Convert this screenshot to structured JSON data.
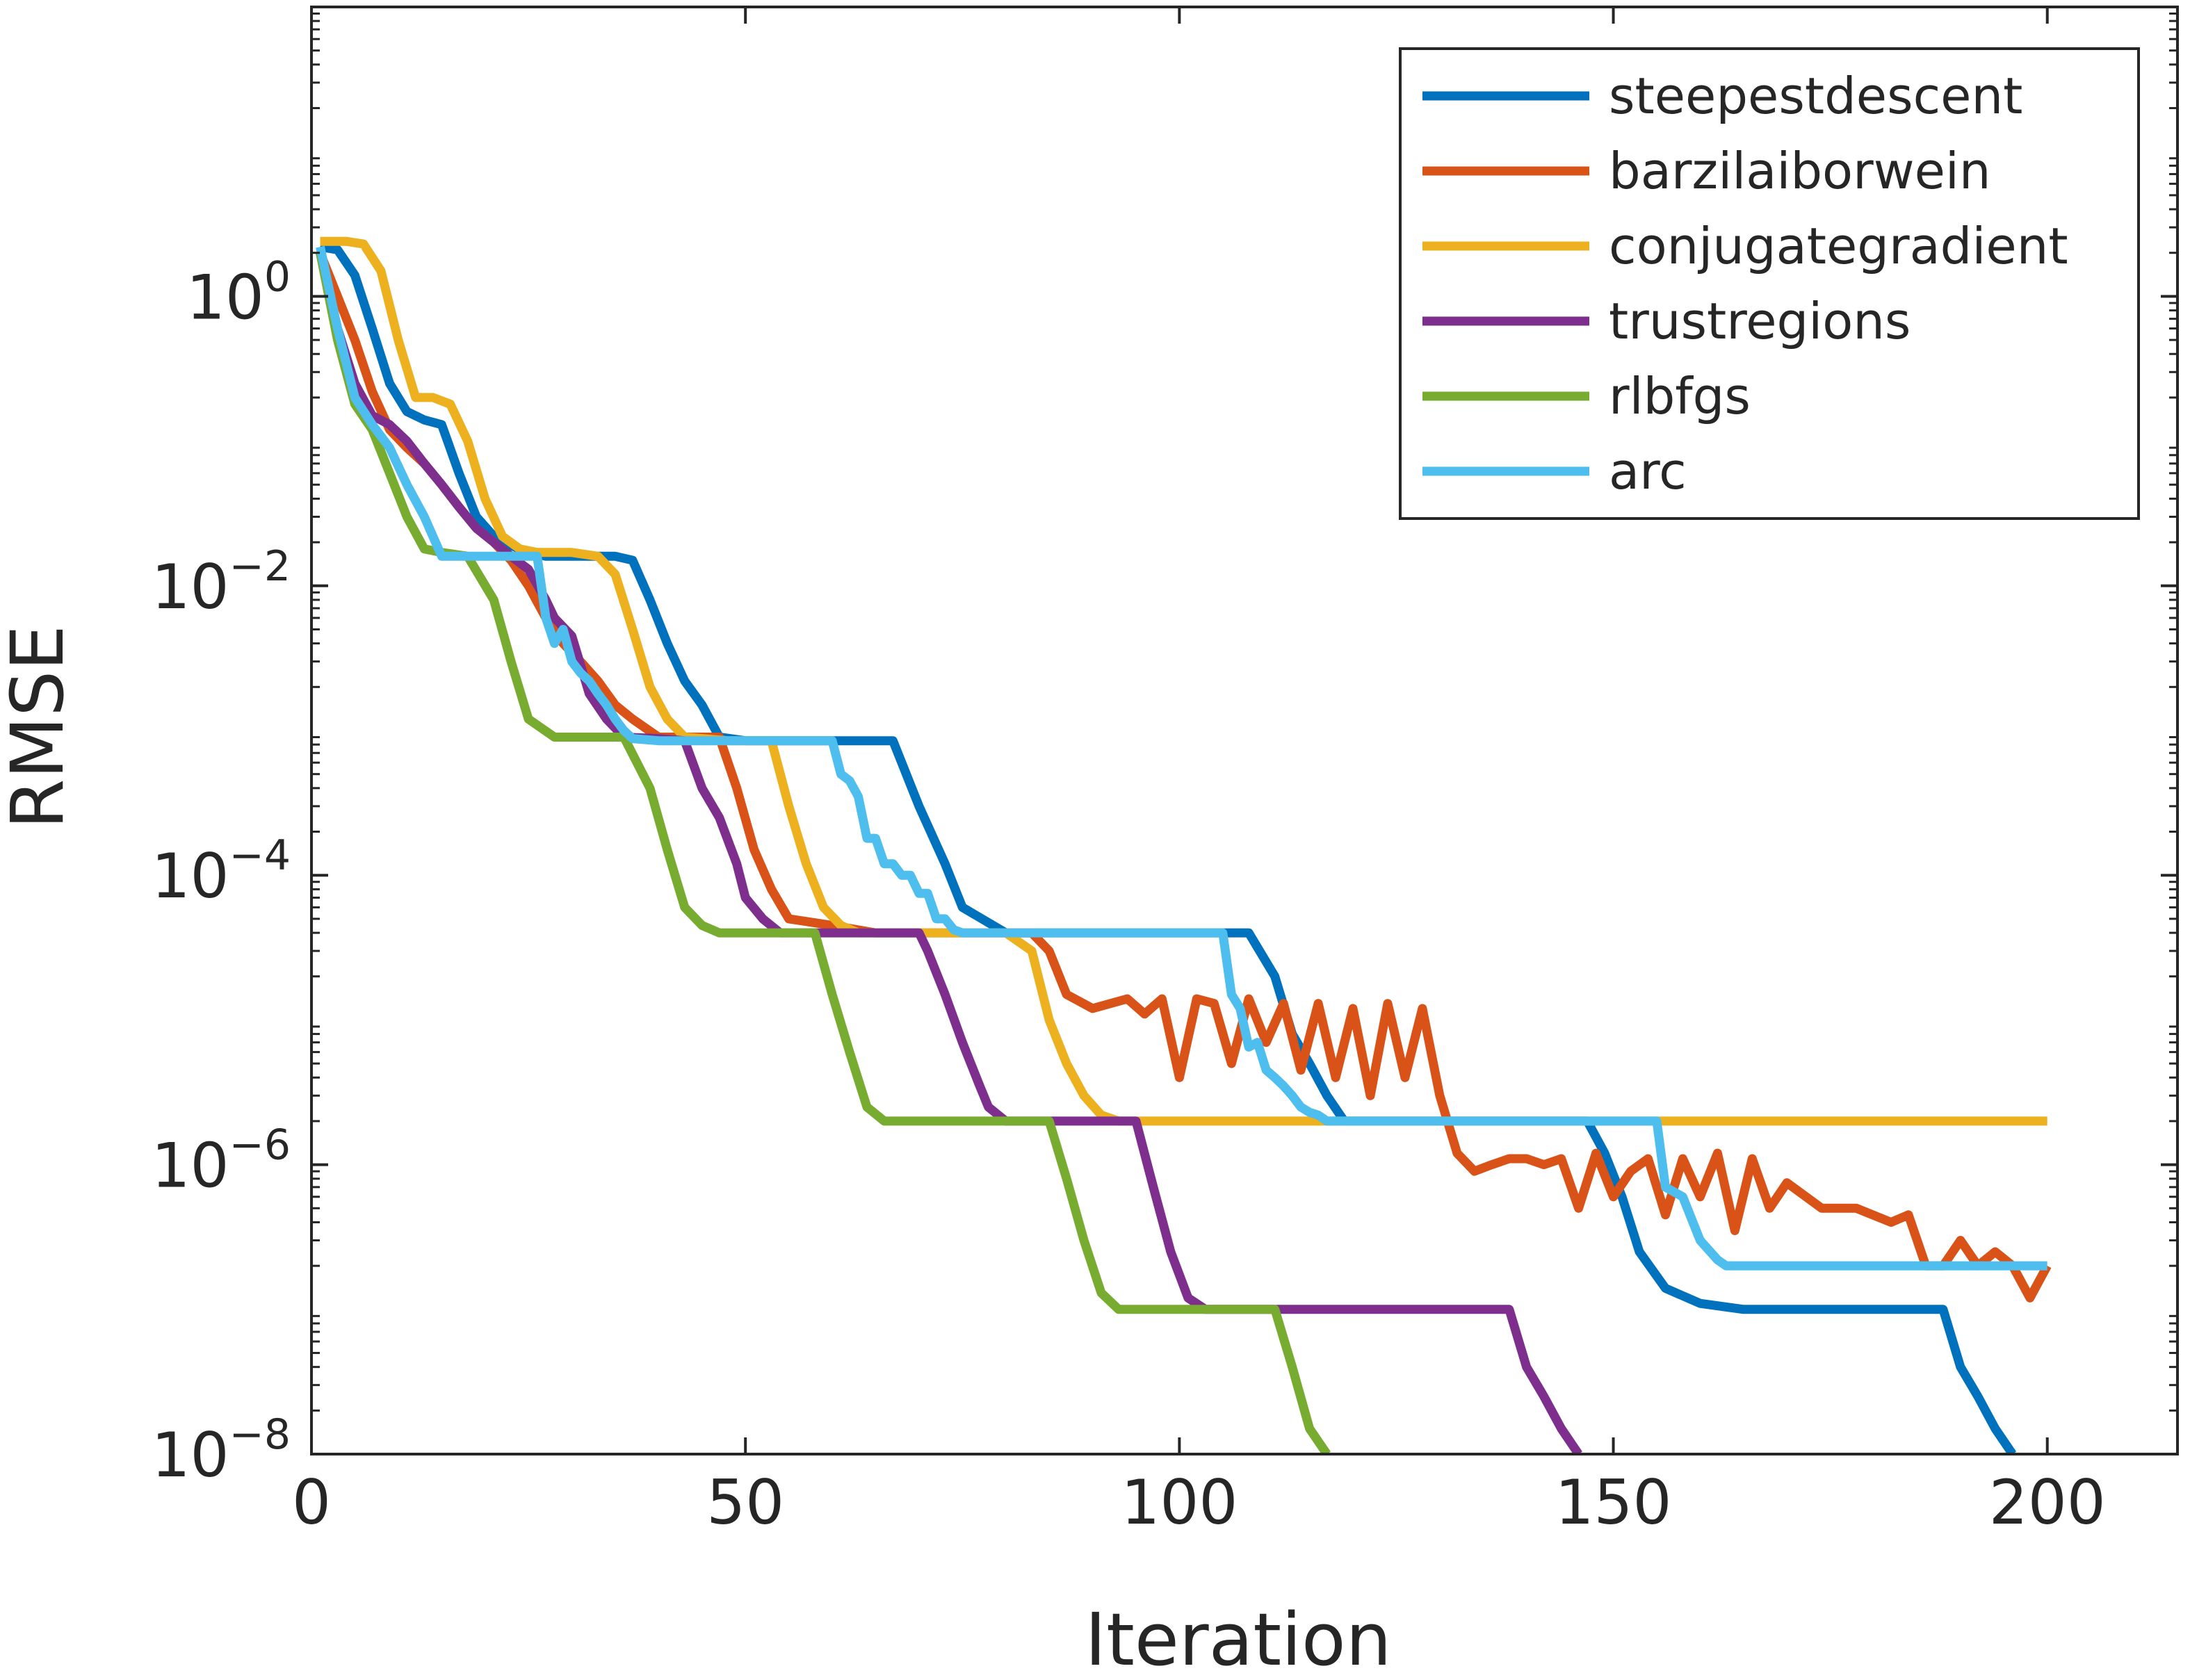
{
  "chart_data": {
    "type": "line",
    "title": "",
    "xlabel": "Iteration",
    "ylabel": "RMSE",
    "xscale": "linear",
    "yscale": "log",
    "xlim": [
      0,
      215
    ],
    "ylim": [
      1e-08,
      100
    ],
    "xticks": [
      0,
      50,
      100,
      150,
      200
    ],
    "xtick_labels": [
      "0",
      "50",
      "100",
      "150",
      "200"
    ],
    "yticks": [
      1,
      0.01,
      0.0001,
      1e-06,
      1e-08
    ],
    "ytick_labels": [
      {
        "base": "10",
        "exp": "0"
      },
      {
        "base": "10",
        "exp": "−2"
      },
      {
        "base": "10",
        "exp": "−4"
      },
      {
        "base": "10",
        "exp": "−6"
      },
      {
        "base": "10",
        "exp": "−8"
      }
    ],
    "grid": false,
    "legend_location": "top-right",
    "series": [
      {
        "name": "steepestdescent",
        "color": "#0072BD",
        "x": [
          1,
          3,
          5,
          7,
          9,
          11,
          13,
          15,
          17,
          19,
          21,
          23,
          25,
          27,
          30,
          33,
          35,
          37,
          39,
          41,
          43,
          45,
          47,
          50,
          55,
          60,
          67,
          70,
          73,
          75,
          80,
          90,
          100,
          108,
          111,
          113,
          115,
          117,
          119,
          122,
          130,
          140,
          147,
          149,
          151,
          153,
          156,
          160,
          165,
          170,
          180,
          188,
          190,
          192,
          194,
          196
        ],
        "y": [
          2.2,
          2.1,
          1.4,
          0.6,
          0.25,
          0.16,
          0.14,
          0.13,
          0.06,
          0.03,
          0.022,
          0.019,
          0.017,
          0.016,
          0.016,
          0.016,
          0.016,
          0.015,
          0.008,
          0.004,
          0.0022,
          0.0015,
          0.0009,
          0.00085,
          0.00085,
          0.00085,
          0.00085,
          0.0003,
          0.00012,
          6e-05,
          4e-05,
          4e-05,
          4e-05,
          4e-05,
          2e-05,
          8e-06,
          5e-06,
          3e-06,
          2e-06,
          2e-06,
          2e-06,
          2e-06,
          2e-06,
          1.2e-06,
          6e-07,
          2.5e-07,
          1.4e-07,
          1.1e-07,
          1e-07,
          1e-07,
          1e-07,
          1e-07,
          4e-08,
          2.5e-08,
          1.5e-08,
          1e-08
        ]
      },
      {
        "name": "barzilaiborwein",
        "color": "#D95319",
        "x": [
          1,
          3,
          5,
          7,
          9,
          11,
          13,
          15,
          17,
          19,
          21,
          23,
          25,
          27,
          29,
          31,
          33,
          35,
          37,
          40,
          43,
          45,
          47,
          49,
          51,
          53,
          55,
          60,
          65,
          70,
          75,
          80,
          83,
          85,
          87,
          90,
          94,
          96,
          98,
          100,
          102,
          104,
          106,
          108,
          110,
          112,
          114,
          116,
          118,
          120,
          122,
          124,
          126,
          128,
          130,
          132,
          134,
          136,
          138,
          140,
          142,
          144,
          146,
          148,
          150,
          152,
          154,
          156,
          158,
          160,
          162,
          164,
          166,
          168,
          170,
          174,
          178,
          182,
          184,
          186,
          188,
          190,
          192,
          194,
          196,
          198,
          200
        ],
        "y": [
          2.0,
          1.0,
          0.5,
          0.22,
          0.12,
          0.09,
          0.07,
          0.05,
          0.035,
          0.025,
          0.02,
          0.015,
          0.01,
          0.006,
          0.004,
          0.003,
          0.0022,
          0.0015,
          0.0012,
          0.0009,
          0.0009,
          0.0009,
          0.0009,
          0.0004,
          0.00015,
          8e-05,
          5e-05,
          4.5e-05,
          4e-05,
          4e-05,
          4e-05,
          4e-05,
          4e-05,
          3e-05,
          1.5e-05,
          1.2e-05,
          1.4e-05,
          1.1e-05,
          1.4e-05,
          4e-06,
          1.4e-05,
          1.3e-05,
          5e-06,
          1.4e-05,
          7e-06,
          1.3e-05,
          4.5e-06,
          1.3e-05,
          4e-06,
          1.2e-05,
          3e-06,
          1.3e-05,
          4e-06,
          1.2e-05,
          3e-06,
          1.2e-06,
          9e-07,
          1e-06,
          1.1e-06,
          1.1e-06,
          1e-06,
          1.1e-06,
          5e-07,
          1.2e-06,
          6e-07,
          9e-07,
          1.1e-06,
          4.5e-07,
          1.1e-06,
          6e-07,
          1.2e-06,
          3.5e-07,
          1.1e-06,
          5e-07,
          7.5e-07,
          5e-07,
          5e-07,
          4e-07,
          4.5e-07,
          2e-07,
          2e-07,
          3e-07,
          2e-07,
          2.5e-07,
          2e-07,
          1.2e-07,
          2e-07
        ]
      },
      {
        "name": "conjugategradient",
        "color": "#EDB120",
        "x": [
          1,
          4,
          6,
          8,
          10,
          12,
          14,
          16,
          18,
          20,
          22,
          24,
          26,
          28,
          30,
          33,
          35,
          37,
          39,
          41,
          43,
          45,
          48,
          53,
          55,
          57,
          59,
          61,
          63,
          65,
          70,
          75,
          80,
          83,
          85,
          87,
          89,
          91,
          93,
          100,
          120,
          150,
          200
        ],
        "y": [
          2.4,
          2.4,
          2.3,
          1.5,
          0.5,
          0.2,
          0.2,
          0.18,
          0.1,
          0.04,
          0.022,
          0.018,
          0.017,
          0.017,
          0.017,
          0.016,
          0.012,
          0.005,
          0.002,
          0.0012,
          0.0009,
          0.00088,
          0.00085,
          0.00085,
          0.0003,
          0.00012,
          6e-05,
          4.5e-05,
          4e-05,
          4e-05,
          4e-05,
          4e-05,
          4e-05,
          3e-05,
          1e-05,
          5e-06,
          3e-06,
          2.2e-06,
          2e-06,
          2e-06,
          2e-06,
          2e-06,
          2e-06
        ]
      },
      {
        "name": "trustregions",
        "color": "#7E2F8E",
        "x": [
          1,
          3,
          5,
          7,
          9,
          11,
          13,
          15,
          17,
          19,
          21,
          23,
          25,
          27,
          28,
          30,
          32,
          34,
          36,
          40,
          43,
          45,
          47,
          49,
          50,
          52,
          54,
          56,
          60,
          65,
          70,
          71,
          73,
          75,
          77,
          78,
          80,
          85,
          90,
          95,
          97,
          99,
          101,
          103,
          105,
          110,
          120,
          130,
          138,
          140,
          142,
          144,
          146
        ],
        "y": [
          2.0,
          0.6,
          0.25,
          0.15,
          0.13,
          0.1,
          0.07,
          0.05,
          0.035,
          0.025,
          0.02,
          0.016,
          0.013,
          0.008,
          0.006,
          0.0045,
          0.0018,
          0.0012,
          0.0009,
          0.00088,
          0.00085,
          0.0004,
          0.00025,
          0.00012,
          7e-05,
          5e-05,
          4e-05,
          4e-05,
          4e-05,
          4e-05,
          4e-05,
          3e-05,
          1.5e-05,
          7e-06,
          3.5e-06,
          2.5e-06,
          2e-06,
          2e-06,
          2e-06,
          2e-06,
          7e-07,
          2.5e-07,
          1.2e-07,
          1e-07,
          1e-07,
          1e-07,
          1e-07,
          1e-07,
          1e-07,
          4e-08,
          2.5e-08,
          1.5e-08,
          1e-08
        ]
      },
      {
        "name": "rlbfgs",
        "color": "#77AC30",
        "x": [
          1,
          3,
          5,
          7,
          9,
          11,
          13,
          15,
          18,
          21,
          23,
          25,
          28,
          32,
          36,
          39,
          41,
          43,
          45,
          47,
          49,
          52,
          55,
          58,
          60,
          62,
          64,
          66,
          70,
          80,
          85,
          87,
          89,
          91,
          93,
          96,
          100,
          111,
          113,
          115,
          117
        ],
        "y": [
          2.0,
          0.5,
          0.18,
          0.12,
          0.06,
          0.03,
          0.018,
          0.017,
          0.016,
          0.008,
          0.003,
          0.0012,
          0.0009,
          0.0009,
          0.0009,
          0.0004,
          0.00015,
          6e-05,
          4.5e-05,
          4e-05,
          4e-05,
          4e-05,
          4e-05,
          4e-05,
          1.5e-05,
          6e-06,
          2.5e-06,
          2e-06,
          2e-06,
          2e-06,
          2e-06,
          8e-07,
          3e-07,
          1.3e-07,
          1e-07,
          1e-07,
          1e-07,
          1e-07,
          4e-08,
          1.5e-08,
          1e-08
        ]
      },
      {
        "name": "arc",
        "color": "#4DBEEE",
        "x": [
          1,
          3,
          5,
          7,
          9,
          11,
          13,
          15,
          17,
          19,
          21,
          23,
          25,
          26,
          27,
          28,
          29,
          30,
          31,
          32,
          33,
          34,
          35,
          36,
          37,
          40,
          45,
          50,
          55,
          60,
          61,
          62,
          63,
          64,
          65,
          66,
          67,
          68,
          69,
          70,
          71,
          72,
          73,
          74,
          75,
          80,
          90,
          100,
          105,
          106,
          107,
          108,
          109,
          110,
          111,
          112,
          113,
          114,
          115,
          116,
          117,
          118,
          120,
          130,
          140,
          150,
          155,
          156,
          158,
          160,
          162,
          163,
          170,
          180,
          190,
          200
        ],
        "y": [
          2.2,
          0.6,
          0.2,
          0.13,
          0.09,
          0.05,
          0.03,
          0.016,
          0.016,
          0.016,
          0.016,
          0.016,
          0.016,
          0.016,
          0.006,
          0.004,
          0.005,
          0.003,
          0.0025,
          0.0022,
          0.0018,
          0.0015,
          0.0012,
          0.001,
          0.00088,
          0.00085,
          0.00085,
          0.00085,
          0.00085,
          0.00085,
          0.0005,
          0.00045,
          0.00035,
          0.00018,
          0.00018,
          0.00012,
          0.00012,
          0.0001,
          0.0001,
          7.5e-05,
          7.5e-05,
          5e-05,
          5e-05,
          4.2e-05,
          4e-05,
          4e-05,
          4e-05,
          4e-05,
          4e-05,
          1.5e-05,
          1.2e-05,
          6.5e-06,
          7e-06,
          4.5e-06,
          4e-06,
          3.5e-06,
          3e-06,
          2.5e-06,
          2.3e-06,
          2.2e-06,
          2e-06,
          2e-06,
          2e-06,
          2e-06,
          2e-06,
          2e-06,
          2e-06,
          7e-07,
          6e-07,
          3e-07,
          2.2e-07,
          2e-07,
          2e-07,
          2e-07,
          2e-07,
          2e-07
        ]
      }
    ]
  }
}
